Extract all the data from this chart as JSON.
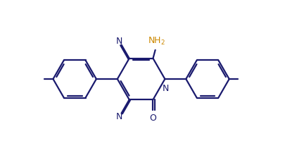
{
  "bg_color": "#ffffff",
  "bond_color": "#1a1a6e",
  "nh2_color": "#cc8800",
  "label_color": "#1a1a6e",
  "line_width": 1.6,
  "figsize": [
    4.05,
    2.24
  ],
  "dpi": 100,
  "xlim": [
    0,
    10.5
  ],
  "ylim": [
    0,
    5.8
  ],
  "ring_r": 0.88,
  "benz_r": 0.8,
  "cx_r": 5.2,
  "cy_r": 2.9
}
